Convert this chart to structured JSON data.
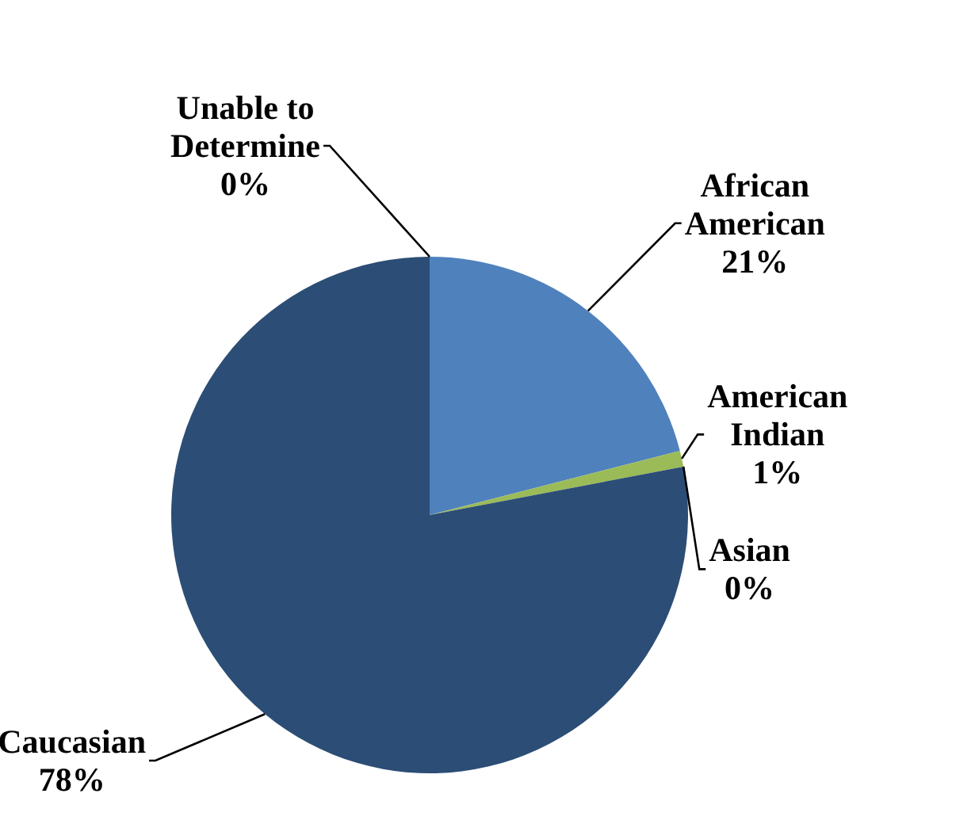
{
  "chart_data": {
    "type": "pie",
    "categories": [
      "African American",
      "American Indian",
      "Asian",
      "Caucasian",
      "Unable to Determine"
    ],
    "values": [
      21,
      1,
      0,
      78,
      0
    ],
    "colors": [
      "#4f81bd",
      "#9bbb59",
      "#4bacc6",
      "#2c4d75",
      "#4f6228"
    ],
    "value_labels": [
      "21%",
      "1%",
      "0%",
      "78%",
      "0%"
    ]
  }
}
